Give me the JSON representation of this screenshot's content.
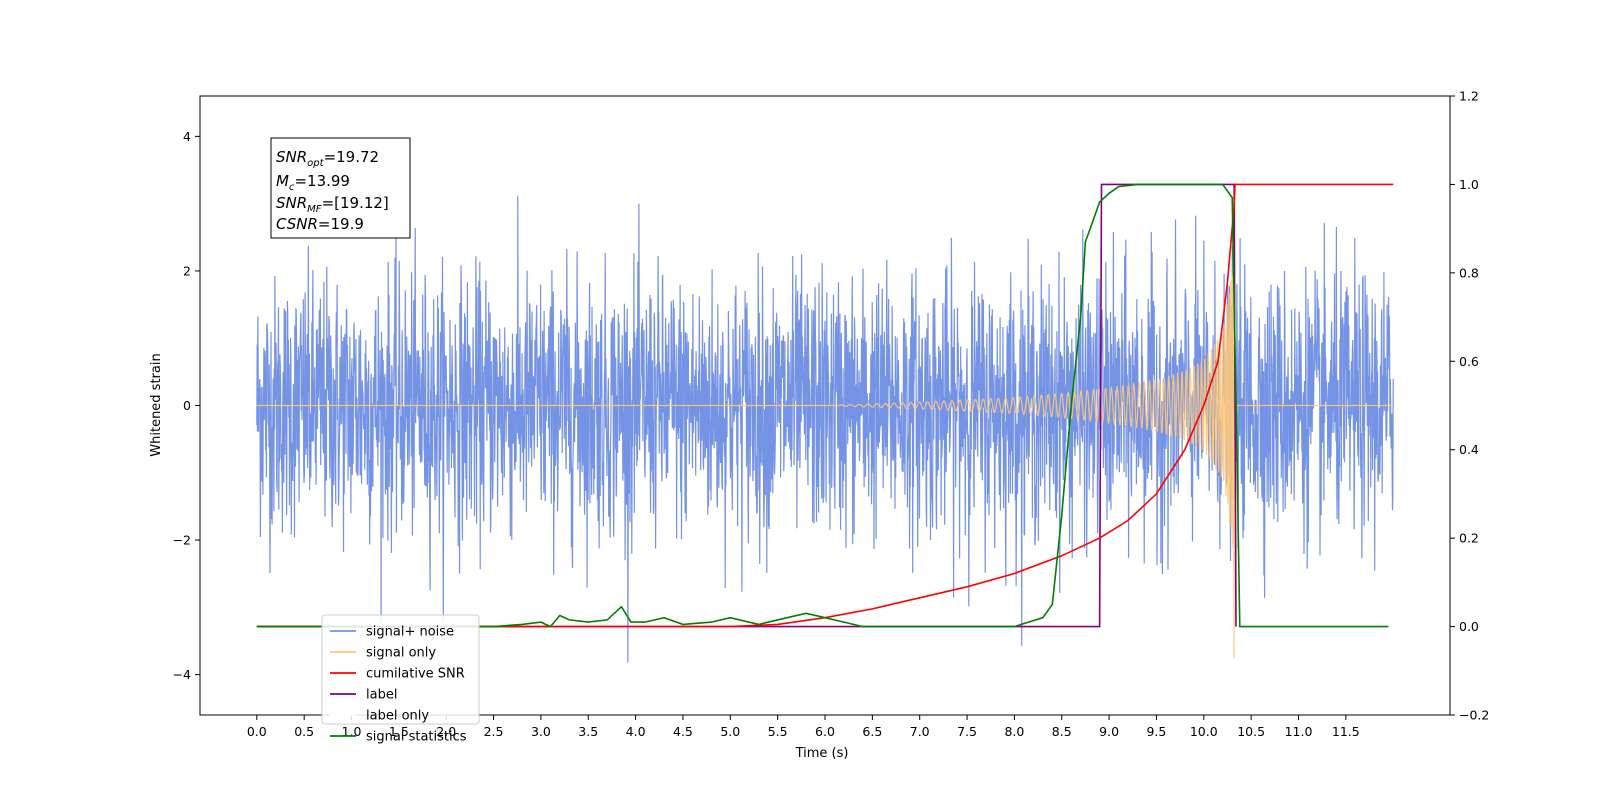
{
  "chart_data": {
    "type": "line",
    "xlabel": "Time (s)",
    "ylabel": "Whitened strain",
    "xlim": [
      -0.6,
      12.6
    ],
    "ylim": [
      -4.6,
      4.6
    ],
    "y2lim": [
      -0.2,
      1.2
    ],
    "x_ticks": [
      "0.0",
      "0.5",
      "1.0",
      "1.5",
      "2.0",
      "2.5",
      "3.0",
      "3.5",
      "4.0",
      "4.5",
      "5.0",
      "5.5",
      "6.0",
      "6.5",
      "7.0",
      "7.5",
      "8.0",
      "8.5",
      "9.0",
      "9.5",
      "10.0",
      "10.5",
      "11.0",
      "11.5"
    ],
    "y_ticks": [
      "−4",
      "−2",
      "0",
      "2",
      "4"
    ],
    "y2_ticks": [
      "−0.2",
      "0.0",
      "0.2",
      "0.4",
      "0.6",
      "0.8",
      "1.0",
      "1.2"
    ],
    "annotation": {
      "snr_opt": "=19.72",
      "mc": "=13.99",
      "snr_mf": "=[19.12]",
      "csnr": "=19.9"
    },
    "legend_position": "lower-left",
    "series": [
      {
        "name": "signal+ noise",
        "color": "#7593e5",
        "axis": "left",
        "description_values": {
          "x_range": [
            0.0,
            12.0
          ],
          "noise_std": 0.95,
          "peak": 3.75
        }
      },
      {
        "name": "signal only",
        "color": "#ffc87a",
        "axis": "left",
        "x": [
          0.0,
          6.0,
          7.0,
          8.0,
          8.5,
          9.0,
          9.5,
          9.8,
          10.0,
          10.2,
          10.3,
          10.32,
          10.35,
          12.0
        ],
        "amplitude": [
          0.0,
          0.0,
          0.05,
          0.12,
          0.18,
          0.26,
          0.38,
          0.52,
          0.68,
          1.1,
          2.0,
          4.2,
          0.0,
          0.0
        ]
      },
      {
        "name": "cumilative SNR",
        "color": "#ff0000",
        "axis": "right",
        "x": [
          0.0,
          5.0,
          5.5,
          6.0,
          6.5,
          7.0,
          7.5,
          8.0,
          8.5,
          8.9,
          9.2,
          9.5,
          9.8,
          10.0,
          10.15,
          10.25,
          10.32,
          10.33,
          12.0
        ],
        "values": [
          0.0,
          0.0,
          0.005,
          0.02,
          0.04,
          0.065,
          0.09,
          0.12,
          0.16,
          0.2,
          0.24,
          0.3,
          0.4,
          0.5,
          0.6,
          0.78,
          0.95,
          1.0,
          1.0
        ]
      },
      {
        "name": "label",
        "color": "#800080",
        "axis": "right",
        "x": [
          0.0,
          8.9,
          8.92,
          10.3,
          10.32,
          10.34
        ],
        "values": [
          0.0,
          0.0,
          1.0,
          1.0,
          1.0,
          0.0
        ]
      },
      {
        "name": "label only",
        "color": "#ffffff",
        "axis": "right",
        "values": []
      },
      {
        "name": "signal statistics",
        "color": "#008000",
        "axis": "right",
        "x": [
          0.0,
          2.5,
          2.8,
          3.0,
          3.1,
          3.2,
          3.3,
          3.5,
          3.7,
          3.85,
          3.95,
          4.1,
          4.3,
          4.5,
          4.8,
          5.0,
          5.3,
          5.6,
          5.8,
          6.0,
          6.2,
          6.4,
          6.5,
          8.0,
          8.3,
          8.4,
          8.5,
          8.6,
          8.7,
          8.75,
          8.8,
          8.9,
          9.0,
          9.1,
          9.3,
          9.6,
          10.0,
          10.2,
          10.3,
          10.35,
          10.38,
          11.95
        ],
        "values": [
          0.0,
          0.0,
          0.005,
          0.01,
          0.0,
          0.025,
          0.015,
          0.01,
          0.015,
          0.045,
          0.01,
          0.01,
          0.02,
          0.005,
          0.01,
          0.02,
          0.005,
          0.02,
          0.03,
          0.02,
          0.01,
          0.0,
          0.0,
          0.0,
          0.02,
          0.05,
          0.25,
          0.5,
          0.7,
          0.87,
          0.9,
          0.96,
          0.98,
          0.995,
          1.0,
          1.0,
          1.0,
          1.0,
          0.97,
          0.4,
          0.0,
          0.0
        ]
      }
    ]
  }
}
